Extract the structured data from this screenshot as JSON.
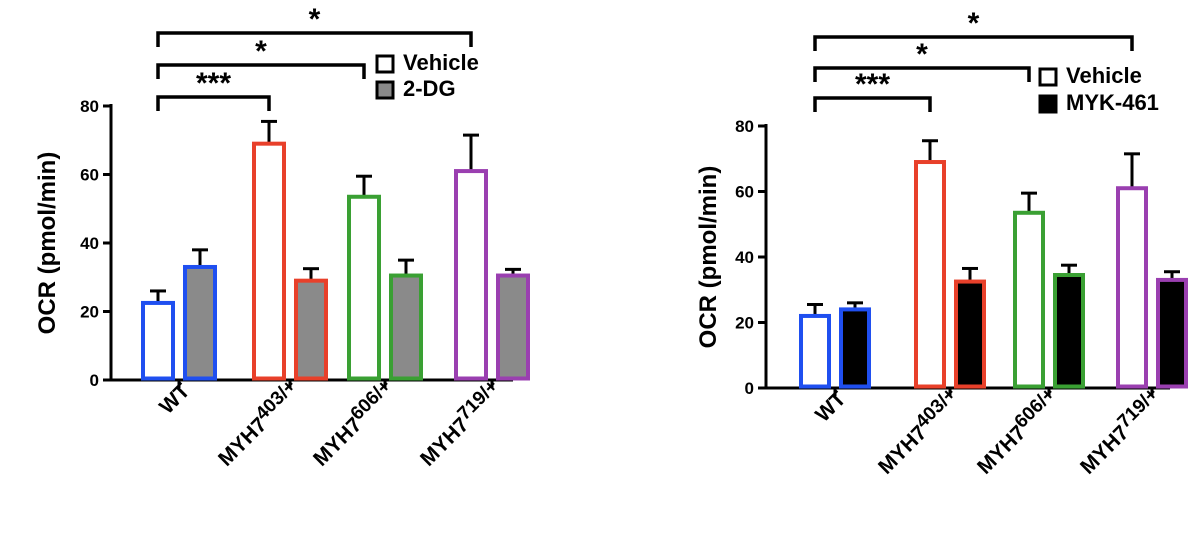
{
  "chart_data": [
    {
      "type": "bar",
      "ylabel": "OCR (pmol/min)",
      "ylim": [
        0,
        80
      ],
      "yticks": [
        "0",
        "20",
        "40",
        "60",
        "80"
      ],
      "categories": [
        {
          "base": "WT",
          "sup": ""
        },
        {
          "base": "MYH7",
          "sup": "403/+"
        },
        {
          "base": "MYH7",
          "sup": "606/+"
        },
        {
          "base": "MYH7",
          "sup": "719/+"
        }
      ],
      "category_colors": [
        "#1f4ff0",
        "#e8402a",
        "#3aa033",
        "#9a3fb0"
      ],
      "series": [
        {
          "name": "Vehicle",
          "fill": "#ffffff",
          "values": [
            22.5,
            69,
            53.5,
            61
          ],
          "errors": [
            3.5,
            6.5,
            6,
            10.5
          ]
        },
        {
          "name": "2-DG",
          "fill": "#8a8a8a",
          "values": [
            33,
            29,
            30.5,
            30.5
          ],
          "errors": [
            5,
            3.5,
            4.5,
            1.8
          ]
        }
      ],
      "significance": [
        {
          "from": 0,
          "to": 1,
          "label": "***"
        },
        {
          "from": 0,
          "to": 2,
          "label": "*"
        },
        {
          "from": 0,
          "to": 3,
          "label": "*"
        }
      ],
      "legend": "top-right",
      "grid": false
    },
    {
      "type": "bar",
      "ylabel": "OCR (pmol/min)",
      "ylim": [
        0,
        80
      ],
      "yticks": [
        "0",
        "20",
        "40",
        "60",
        "80"
      ],
      "categories": [
        {
          "base": "WT",
          "sup": ""
        },
        {
          "base": "MYH7",
          "sup": "403/+"
        },
        {
          "base": "MYH7",
          "sup": "606/+"
        },
        {
          "base": "MYH7",
          "sup": "719/+"
        }
      ],
      "category_colors": [
        "#1f4ff0",
        "#e8402a",
        "#3aa033",
        "#9a3fb0"
      ],
      "series": [
        {
          "name": "Vehicle",
          "fill": "#ffffff",
          "values": [
            22,
            69,
            53.5,
            61
          ],
          "errors": [
            3.5,
            6.5,
            6,
            10.5
          ]
        },
        {
          "name": "MYK-461",
          "fill": "#000000",
          "values": [
            24,
            32.5,
            34.5,
            33
          ],
          "errors": [
            2,
            4,
            3,
            2.5
          ]
        }
      ],
      "significance": [
        {
          "from": 0,
          "to": 1,
          "label": "***"
        },
        {
          "from": 0,
          "to": 2,
          "label": "*"
        },
        {
          "from": 0,
          "to": 3,
          "label": "*"
        }
      ],
      "legend": "top-right",
      "grid": false
    }
  ]
}
